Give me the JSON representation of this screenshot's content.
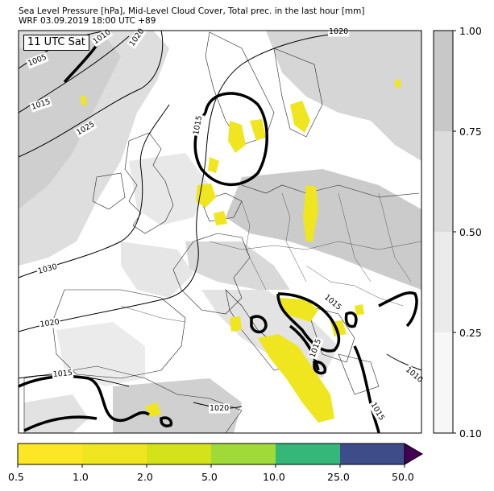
{
  "header": {
    "title_line1": "Sea Level Pressure [hPa], Mid-Level Cloud Cover, Total prec. in the last hour [mm]",
    "title_line2": "WRF 03.09.2019 18:00 UTC +89"
  },
  "map": {
    "time_stamp": "11 UTC Sat",
    "isobar_labels": [
      "1005",
      "1010",
      "1020",
      "1015",
      "1025",
      "1020",
      "1015",
      "1030",
      "1020",
      "1015",
      "1020",
      "1015",
      "1015",
      "1015",
      "1010"
    ]
  },
  "cloud_colorbar": {
    "ticks": [
      "1.00",
      "0.75",
      "0.50",
      "0.25",
      "0.10"
    ],
    "colors": [
      "#c8c8c8",
      "#dcdcdc",
      "#ebebeb",
      "#f7f7f7"
    ]
  },
  "precip_colorbar": {
    "ticks": [
      "0.5",
      "1.0",
      "2.0",
      "5.0",
      "10.0",
      "25.0",
      "50.0"
    ],
    "colors": [
      "#fde725",
      "#f0e61f",
      "#d4e21a",
      "#a0da39",
      "#35b779",
      "#2c728e",
      "#440154"
    ]
  }
}
